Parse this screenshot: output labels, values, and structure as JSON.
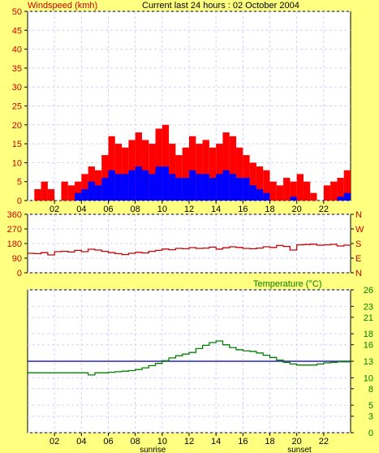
{
  "header": {
    "panel_label": "Windspeed (kmh)",
    "title": "Current last 24 hours : 02 October 2004"
  },
  "colors": {
    "background": "#ffff80",
    "plot_background": "#ffffff",
    "grid": "#d0d0ff",
    "gust": "#ff0000",
    "average": "#0000ff",
    "direction": "#cc0000",
    "temperature": "#008000",
    "temperature_reference": "#000080",
    "axis_text": "#cc0000",
    "temp_axis_text": "#008000"
  },
  "x_axis": {
    "range": [
      0,
      24
    ],
    "tick_hours": [
      2,
      4,
      6,
      8,
      10,
      12,
      14,
      16,
      18,
      20,
      22
    ],
    "tick_labels": [
      "02",
      "04",
      "06",
      "08",
      "10",
      "12",
      "14",
      "16",
      "18",
      "20",
      "22"
    ],
    "markers": [
      {
        "label": "sunrise",
        "hour": 9.3
      },
      {
        "label": "sunset",
        "hour": 20.2
      }
    ]
  },
  "chart_data": [
    {
      "type": "bar",
      "title": "Windspeed (kmh)",
      "ylabel": "Windspeed (kmh)",
      "xlim": [
        0,
        24
      ],
      "ylim": [
        0,
        50
      ],
      "y_ticks": [
        0,
        5,
        10,
        15,
        20,
        25,
        30,
        35,
        40,
        45,
        50
      ],
      "grid": true,
      "x": [
        0,
        0.5,
        1,
        1.5,
        2,
        2.5,
        3,
        3.5,
        4,
        4.5,
        5,
        5.5,
        6,
        6.5,
        7,
        7.5,
        8,
        8.5,
        9,
        9.5,
        10,
        10.5,
        11,
        11.5,
        12,
        12.5,
        13,
        13.5,
        14,
        14.5,
        15,
        15.5,
        16,
        16.5,
        17,
        17.5,
        18,
        18.5,
        19,
        19.5,
        20,
        20.5,
        21,
        21.5,
        22,
        22.5,
        23,
        23.5
      ],
      "series": [
        {
          "values": [
            0,
            3,
            5,
            3,
            0,
            5,
            4,
            5,
            7,
            9,
            8,
            12,
            17,
            15,
            14,
            16,
            18,
            16,
            15,
            19,
            20,
            15,
            12,
            14,
            17,
            15,
            16,
            14,
            15,
            18,
            17,
            14,
            12,
            10,
            9,
            8,
            5,
            4,
            6,
            5,
            7,
            5,
            2,
            0,
            4,
            5,
            6,
            8
          ]
        },
        {
          "values": [
            0,
            0,
            0,
            0,
            0,
            0,
            0,
            2,
            3,
            5,
            4,
            6,
            8,
            7,
            7,
            8,
            9,
            8,
            7,
            9,
            9,
            7,
            6,
            6,
            8,
            7,
            7,
            6,
            7,
            8,
            7,
            6,
            6,
            4,
            3,
            2,
            0,
            0,
            0,
            1,
            0,
            0,
            0,
            0,
            0,
            0,
            1,
            2
          ]
        }
      ]
    },
    {
      "type": "line",
      "ylabel": "",
      "xlim": [
        0,
        24
      ],
      "ylim": [
        0,
        360
      ],
      "y_ticks": [
        0,
        90,
        180,
        270,
        360
      ],
      "compass_labels": [
        "N",
        "W",
        "S",
        "E",
        "N"
      ],
      "grid": true,
      "x": [
        0,
        0.5,
        1,
        1.5,
        2,
        2.5,
        3,
        3.5,
        4,
        4.5,
        5,
        5.5,
        6,
        6.5,
        7,
        7.5,
        8,
        8.5,
        9,
        9.5,
        10,
        10.5,
        11,
        11.5,
        12,
        12.5,
        13,
        13.5,
        14,
        14.5,
        15,
        15.5,
        16,
        16.5,
        17,
        17.5,
        18,
        18.5,
        19,
        19.5,
        20,
        20.5,
        21,
        21.5,
        22,
        22.5,
        23,
        23.5
      ],
      "series": [
        {
          "values": [
            120,
            118,
            124,
            110,
            130,
            132,
            128,
            138,
            130,
            145,
            140,
            132,
            124,
            118,
            112,
            120,
            126,
            122,
            132,
            138,
            146,
            142,
            150,
            148,
            155,
            150,
            152,
            158,
            146,
            154,
            160,
            156,
            150,
            148,
            152,
            160,
            156,
            168,
            162,
            140,
            172,
            174,
            176,
            170,
            172,
            175,
            165,
            170
          ]
        }
      ]
    },
    {
      "type": "line",
      "title": "Temperature (°C)",
      "ylabel": "Temperature (°C)",
      "xlim": [
        0,
        24
      ],
      "ylim": [
        0,
        26
      ],
      "y_ticks": [
        0,
        3,
        5,
        8,
        10,
        13,
        16,
        18,
        21,
        23,
        26
      ],
      "grid": true,
      "x": [
        0,
        0.5,
        1,
        1.5,
        2,
        2.5,
        3,
        3.5,
        4,
        4.5,
        5,
        5.5,
        6,
        6.5,
        7,
        7.5,
        8,
        8.5,
        9,
        9.5,
        10,
        10.5,
        11,
        11.5,
        12,
        12.5,
        13,
        13.5,
        14,
        14.5,
        15,
        15.5,
        16,
        16.5,
        17,
        17.5,
        18,
        18.5,
        19,
        19.5,
        20,
        20.5,
        21,
        21.5,
        22,
        22.5,
        23,
        23.5
      ],
      "series": [
        {
          "values": [
            10.9,
            10.9,
            10.9,
            10.9,
            10.9,
            10.9,
            10.9,
            10.9,
            10.9,
            10.5,
            10.9,
            10.9,
            11.0,
            11.1,
            11.2,
            11.3,
            11.5,
            11.8,
            12.2,
            12.6,
            13.1,
            13.6,
            14.0,
            14.3,
            14.6,
            15.3,
            15.9,
            16.4,
            16.7,
            16.0,
            15.5,
            15.1,
            14.9,
            14.8,
            14.5,
            14.1,
            13.7,
            13.2,
            12.8,
            12.5,
            12.3,
            12.3,
            12.3,
            12.5,
            12.7,
            12.8,
            12.9,
            12.9
          ]
        },
        {
          "values": [
            13,
            13,
            13,
            13,
            13,
            13,
            13,
            13,
            13,
            13,
            13,
            13,
            13,
            13,
            13,
            13,
            13,
            13,
            13,
            13,
            13,
            13,
            13,
            13,
            13,
            13,
            13,
            13,
            13,
            13,
            13,
            13,
            13,
            13,
            13,
            13,
            13,
            13,
            13,
            13,
            13,
            13,
            13,
            13,
            13,
            13,
            13,
            13
          ]
        }
      ]
    }
  ]
}
